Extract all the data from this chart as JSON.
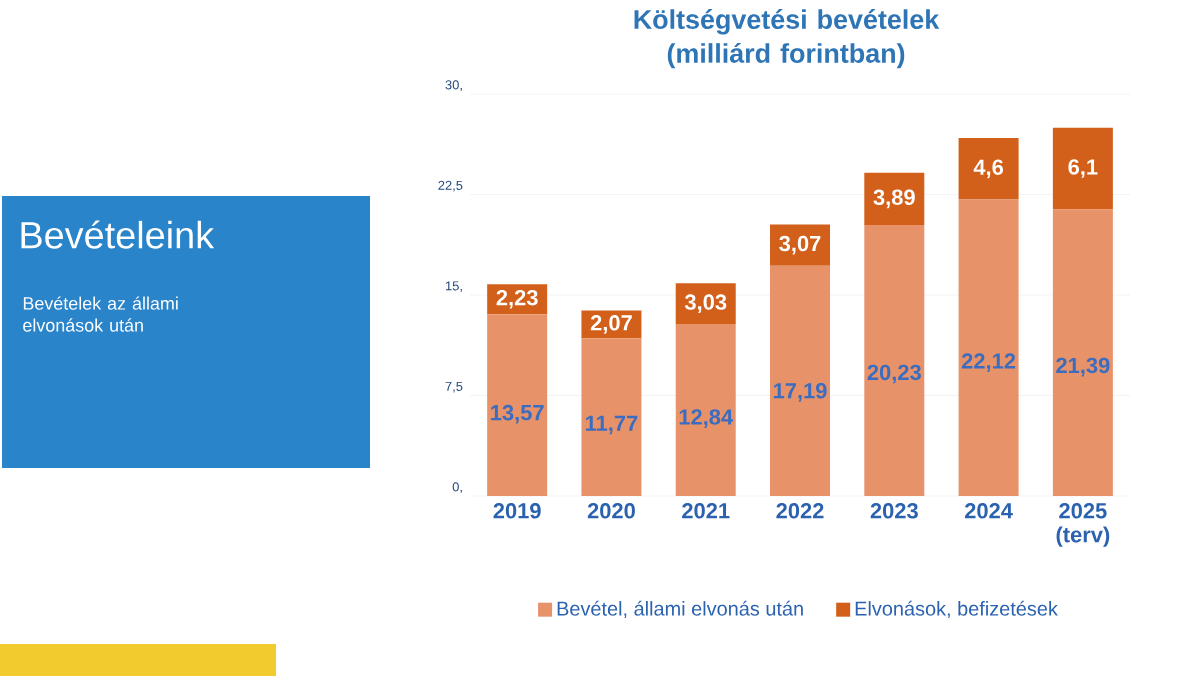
{
  "chart_data": {
    "type": "bar",
    "title": "Költségvetési bevételek (milliárd forintban)",
    "annotations": [
      "Bevételeink",
      "Bevételek az állami elvonások után"
    ],
    "categories": [
      "2019",
      "2020",
      "2021",
      "2022",
      "2023",
      "2024",
      "2025 (terv)"
    ],
    "stacked": true,
    "series": [
      {
        "name": "Bevétel, állami elvonás után",
        "color": "#e8926a",
        "values": [
          13.57,
          11.77,
          12.84,
          17.19,
          20.23,
          22.12,
          21.39
        ],
        "value_labels": [
          "13,57",
          "11,77",
          "12,84",
          "17,19",
          "20,23",
          "22,12",
          "21,39"
        ]
      },
      {
        "name": "Elvonások, befizetések",
        "color": "#d2601a",
        "values": [
          2.23,
          2.07,
          3.03,
          3.07,
          3.89,
          4.6,
          6.1
        ],
        "value_labels": [
          "2,23",
          "2,07",
          "3,03",
          "3,07",
          "3,89",
          "4,6",
          "6,1"
        ]
      }
    ],
    "ylim": [
      0,
      30
    ],
    "yticks": [
      {
        "value": 0,
        "label": "0,"
      },
      {
        "value": 7.5,
        "label": "7,5"
      },
      {
        "value": 15,
        "label": "15,"
      },
      {
        "value": 22.5,
        "label": "22,5"
      },
      {
        "value": 30,
        "label": "30,"
      }
    ],
    "grid": "y",
    "legend": "bottom"
  }
}
